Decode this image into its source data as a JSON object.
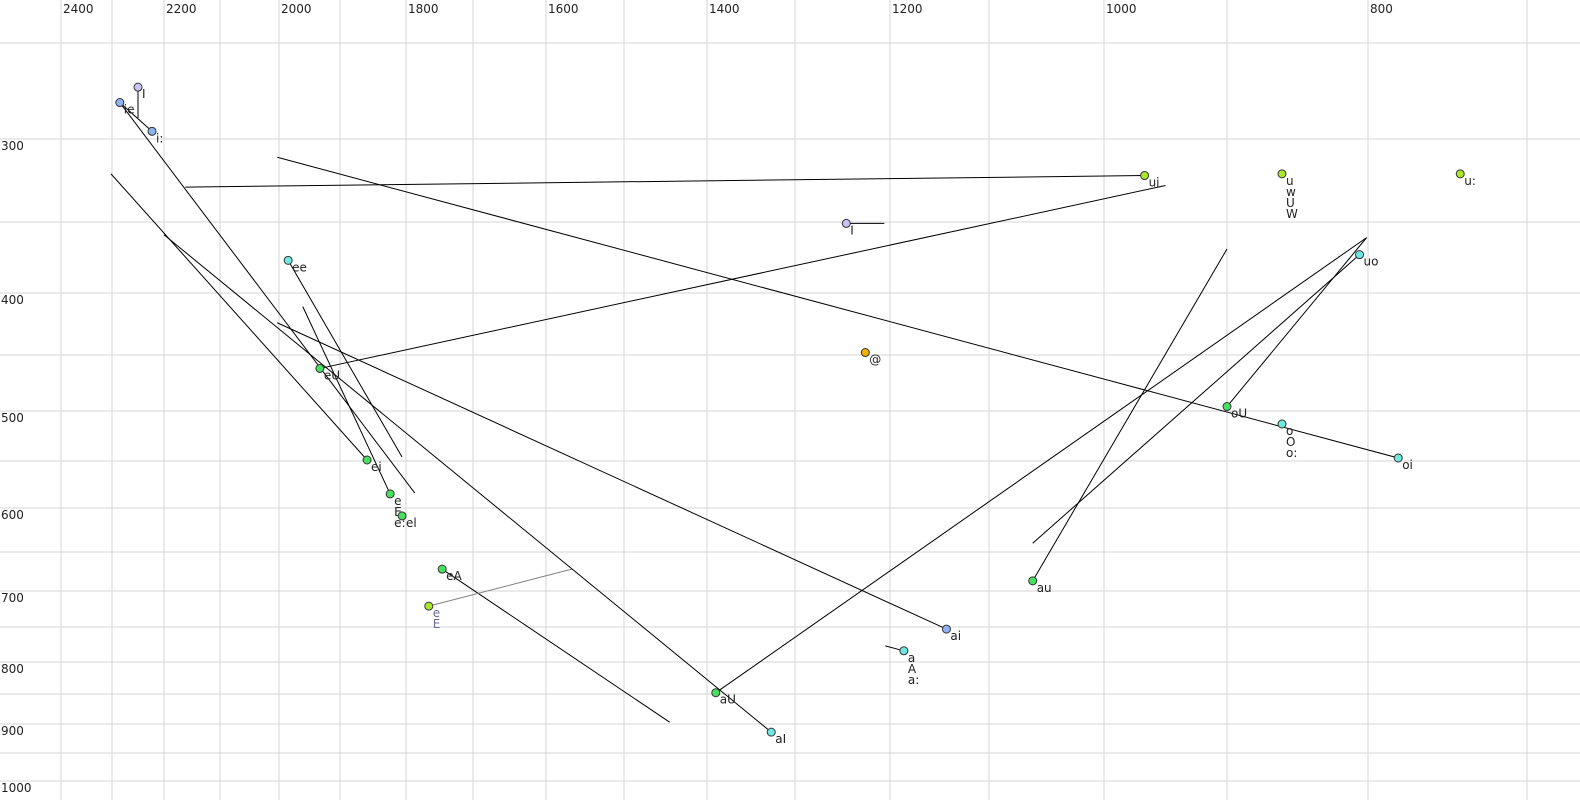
{
  "chart_data": {
    "type": "scatter",
    "title": "",
    "xlabel": "",
    "ylabel": "",
    "x_reversed": true,
    "y_reversed": true,
    "xlim": [
      2400,
      700
    ],
    "ylim": [
      250,
      1000
    ],
    "x_tick_labels": [
      "2400",
      "2200",
      "2000",
      "1800",
      "1600",
      "1400",
      "1200",
      "1000",
      "800"
    ],
    "y_tick_labels": [
      "300",
      "400",
      "500",
      "600",
      "700",
      "800",
      "900",
      "1000"
    ],
    "grid": true,
    "colors": {
      "lavender": "#c8c4f4",
      "blue": "#8cb4f4",
      "cyan": "#6ee8e0",
      "green": "#48e060",
      "yellowgreen": "#a8e828",
      "orange": "#f4b000"
    },
    "points": [
      {
        "labels": [
          "I"
        ],
        "f2": 2250,
        "f1": 273,
        "color": "lavender",
        "trajectory_end": [
          2250,
          289
        ]
      },
      {
        "labels": [
          "ie"
        ],
        "f2": 2285,
        "f1": 281,
        "color": "blue",
        "trajectory_end": [
          1787,
          584
        ]
      },
      {
        "labels": [
          "i:"
        ],
        "f2": 2223,
        "f1": 296,
        "color": "blue",
        "trajectory_end": [
          2285,
          281
        ]
      },
      {
        "labels": [
          "ui"
        ],
        "f2": 967,
        "f1": 322,
        "color": "yellowgreen",
        "trajectory_end": [
          2162,
          329
        ]
      },
      {
        "labels": [
          "u",
          "w",
          "U",
          "W"
        ],
        "f2": 861,
        "f1": 321,
        "color": "yellowgreen"
      },
      {
        "labels": [
          "u:"
        ],
        "f2": 742,
        "f1": 321,
        "color": "yellowgreen"
      },
      {
        "labels": [
          "I"
        ],
        "f2": 1246,
        "f1": 351,
        "color": "lavender",
        "trajectory_end": [
          1206,
          351
        ]
      },
      {
        "labels": [
          "ee"
        ],
        "f2": 1985,
        "f1": 377,
        "color": "cyan",
        "trajectory_end": [
          1806,
          546
        ]
      },
      {
        "labels": [
          "uo"
        ],
        "f2": 806,
        "f1": 373,
        "color": "cyan",
        "trajectory_end": [
          1062,
          640
        ]
      },
      {
        "labels": [
          "@"
        ],
        "f2": 1226,
        "f1": 448,
        "color": "orange"
      },
      {
        "labels": [
          "eU"
        ],
        "f2": 1933,
        "f1": 462,
        "color": "green",
        "trajectory_end": [
          950,
          328
        ]
      },
      {
        "labels": [
          "oU"
        ],
        "f2": 900,
        "f1": 496,
        "color": "green",
        "trajectory_end": [
          801,
          361
        ]
      },
      {
        "labels": [
          "o",
          "O",
          "o:"
        ],
        "f2": 861,
        "f1": 513,
        "color": "cyan"
      },
      {
        "labels": [
          "oi"
        ],
        "f2": 781,
        "f1": 547,
        "color": "cyan",
        "trajectory_end": [
          2003,
          311
        ]
      },
      {
        "labels": [
          "ei"
        ],
        "f2": 1859,
        "f1": 549,
        "color": "green",
        "trajectory_end": [
          2302,
          321
        ]
      },
      {
        "labels": [
          "e",
          "E",
          "e:"
        ],
        "f2": 1824,
        "f1": 585,
        "color": "green",
        "trajectory_end": [
          1961,
          411
        ]
      },
      {
        "labels": [
          "el"
        ],
        "f2": 1806,
        "f1": 609,
        "color": "green"
      },
      {
        "labels": [
          "eA"
        ],
        "f2": 1746,
        "f1": 672,
        "color": "green",
        "trajectory_end": [
          1445,
          897
        ]
      },
      {
        "labels": [
          "e",
          "E"
        ],
        "f2": 1766,
        "f1": 721,
        "color": "yellowgreen",
        "label_color": "#6a6aa0",
        "line_color": "#808080",
        "trajectory_end": [
          1567,
          672
        ]
      },
      {
        "labels": [
          "au"
        ],
        "f2": 1062,
        "f1": 687,
        "color": "green",
        "trajectory_end": [
          900,
          369
        ]
      },
      {
        "labels": [
          "ai"
        ],
        "f2": 1143,
        "f1": 753,
        "color": "blue",
        "trajectory_end": [
          2003,
          424
        ]
      },
      {
        "labels": [
          "a",
          "A",
          "a:"
        ],
        "f2": 1186,
        "f1": 784,
        "color": "cyan",
        "trajectory_end": [
          1205,
          777
        ]
      },
      {
        "labels": [
          "aU"
        ],
        "f2": 1390,
        "f1": 848,
        "color": "green",
        "trajectory_end": [
          801,
          361
        ]
      },
      {
        "labels": [
          "aI"
        ],
        "f2": 1327,
        "f1": 914,
        "color": "cyan",
        "trajectory_end": [
          2200,
          359
        ]
      }
    ]
  }
}
